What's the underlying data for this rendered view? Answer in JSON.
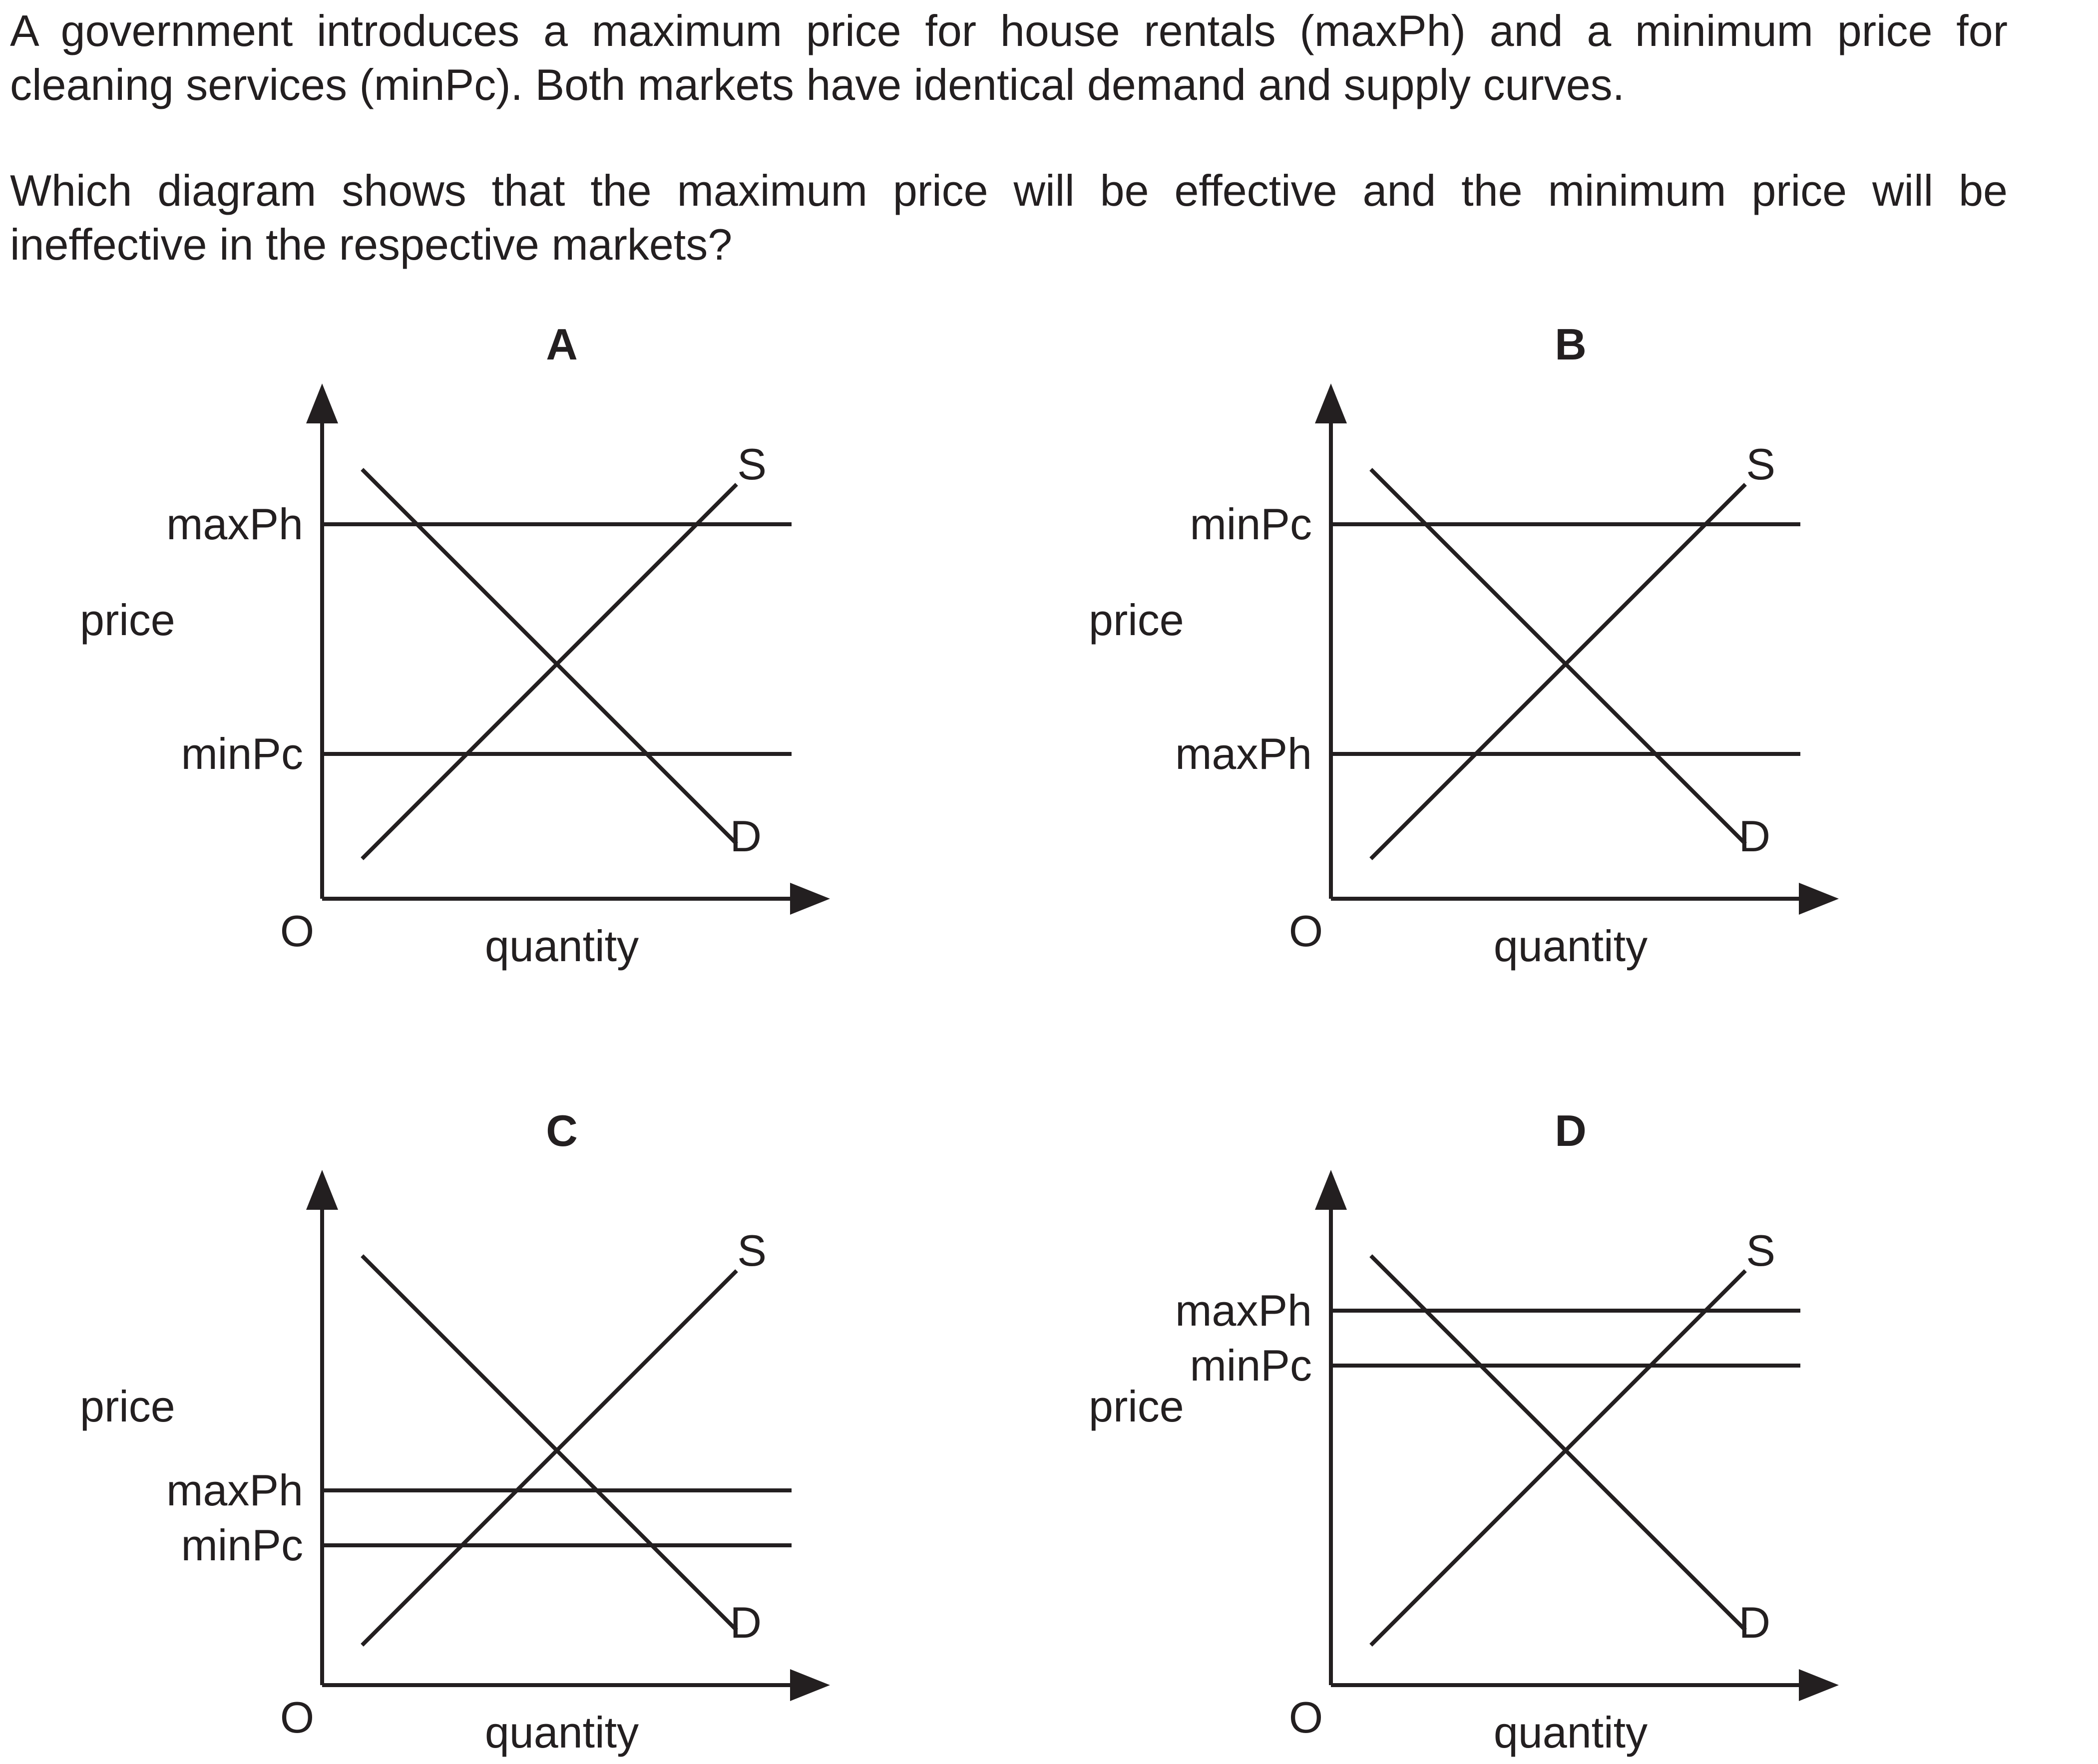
{
  "question": {
    "paragraph1": "A government introduces a maximum price for house rentals (maxPh) and a minimum price for cleaning services (minPc). Both markets have identical demand and supply curves.",
    "paragraph2": "Which diagram shows that the maximum price will be effective and the minimum price will be ineffective in the respective markets?"
  },
  "common_labels": {
    "y_axis": "price",
    "x_axis": "quantity",
    "origin": "O",
    "supply": "S",
    "demand": "D",
    "max_price": "maxPh",
    "min_price": "minPc"
  },
  "panels": [
    {
      "letter": "A",
      "upper_line": "maxPh",
      "lower_line": "minPc",
      "position": "both-apart",
      "upper_level": 0.75,
      "lower_level": 0.29
    },
    {
      "letter": "B",
      "upper_line": "minPc",
      "lower_line": "maxPh",
      "position": "both-apart",
      "upper_level": 0.75,
      "lower_level": 0.29
    },
    {
      "letter": "C",
      "upper_line": "maxPh",
      "lower_line": "minPc",
      "position": "both-below",
      "upper_level": 0.39,
      "lower_level": 0.28
    },
    {
      "letter": "D",
      "upper_line": "maxPh",
      "lower_line": "minPc",
      "position": "both-above",
      "upper_level": 0.75,
      "lower_level": 0.64
    }
  ]
}
